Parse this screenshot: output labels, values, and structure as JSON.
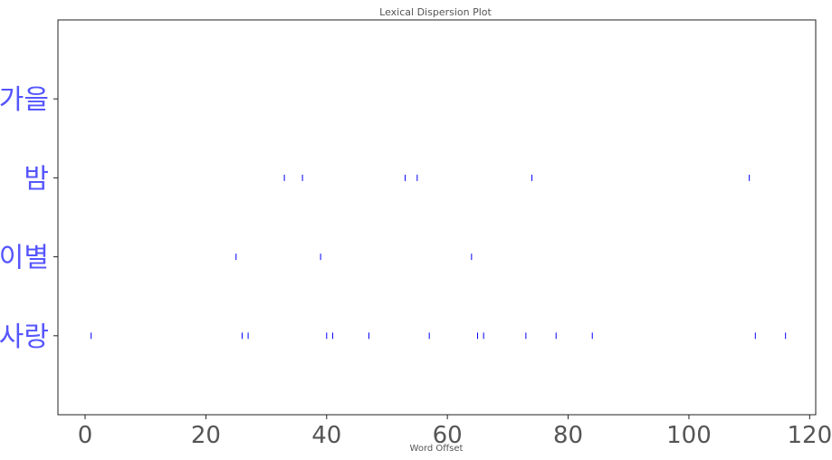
{
  "chart_data": {
    "type": "scatter",
    "title": "Lexical Dispersion Plot",
    "xlabel": "Word Offset",
    "ylabel": "",
    "xlim": [
      -4.5,
      121
    ],
    "xticks": [
      0,
      20,
      40,
      60,
      80,
      100,
      120
    ],
    "grid": false,
    "marker": "|",
    "marker_color": "#0000ff",
    "tick_label_color": "#5555ff",
    "categories": [
      "사랑",
      "이별",
      "밤",
      "가을"
    ],
    "series": [
      {
        "word": "사랑",
        "x": [
          1,
          26,
          27,
          40,
          41,
          47,
          57,
          65,
          66,
          73,
          78,
          84,
          111,
          116
        ]
      },
      {
        "word": "이별",
        "x": [
          25,
          39,
          64
        ]
      },
      {
        "word": "밤",
        "x": [
          33,
          36,
          53,
          55,
          74,
          110
        ]
      },
      {
        "word": "가을",
        "x": []
      }
    ]
  }
}
